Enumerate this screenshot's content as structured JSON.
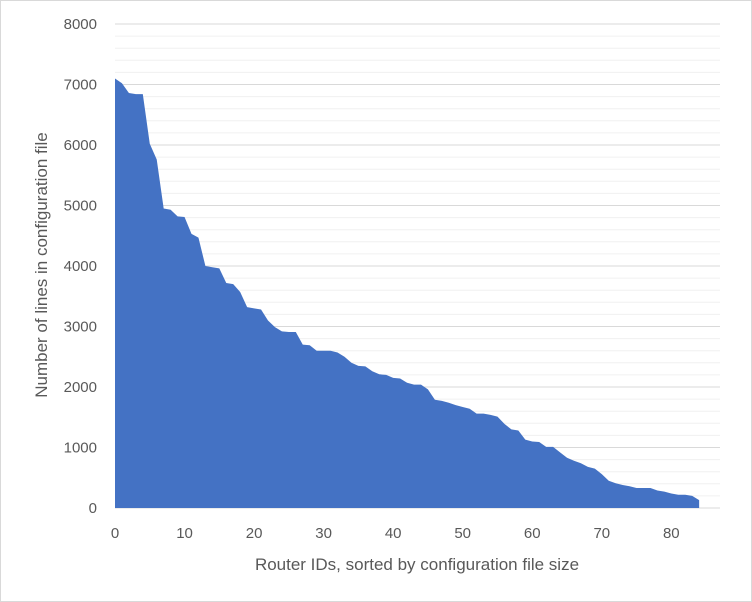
{
  "chart_data": {
    "type": "area",
    "title": "",
    "xlabel": "Router IDs, sorted by configuration file size",
    "ylabel": "Number of lines in configuration file",
    "xlim": [
      0,
      87
    ],
    "ylim": [
      0,
      8000
    ],
    "x_ticks": [
      0,
      10,
      20,
      30,
      40,
      50,
      60,
      70,
      80
    ],
    "y_ticks": [
      0,
      1000,
      2000,
      3000,
      4000,
      5000,
      6000,
      7000,
      8000
    ],
    "grid": true,
    "legend": "none",
    "fill_color": "#4472C4",
    "series": [
      {
        "x": [
          0,
          1,
          2,
          3,
          4,
          5,
          6,
          7,
          8,
          9,
          10,
          11,
          12,
          13,
          14,
          15,
          16,
          17,
          18,
          19,
          20,
          21,
          22,
          23,
          24,
          25,
          26,
          27,
          28,
          29,
          30,
          31,
          32,
          33,
          34,
          35,
          36,
          37,
          38,
          39,
          40,
          41,
          42,
          43,
          44,
          45,
          46,
          47,
          48,
          49,
          50,
          51,
          52,
          53,
          54,
          55,
          56,
          57,
          58,
          59,
          60,
          61,
          62,
          63,
          64,
          65,
          66,
          67,
          68,
          69,
          70,
          71,
          72,
          73,
          74,
          75,
          76,
          77,
          78,
          79,
          80,
          81,
          82,
          83,
          84
        ],
        "values": [
          7100,
          7020,
          6860,
          6840,
          6840,
          6020,
          5760,
          4950,
          4930,
          4820,
          4810,
          4530,
          4470,
          4000,
          3980,
          3960,
          3720,
          3700,
          3570,
          3320,
          3300,
          3280,
          3100,
          2990,
          2920,
          2910,
          2910,
          2700,
          2690,
          2600,
          2600,
          2600,
          2570,
          2500,
          2400,
          2350,
          2340,
          2260,
          2210,
          2200,
          2150,
          2140,
          2070,
          2040,
          2040,
          1960,
          1790,
          1770,
          1740,
          1700,
          1670,
          1640,
          1560,
          1560,
          1540,
          1510,
          1390,
          1300,
          1280,
          1130,
          1100,
          1090,
          1010,
          1010,
          920,
          830,
          780,
          740,
          680,
          650,
          560,
          450,
          410,
          380,
          360,
          330,
          330,
          330,
          290,
          270,
          240,
          220,
          220,
          200,
          130
        ]
      }
    ]
  }
}
